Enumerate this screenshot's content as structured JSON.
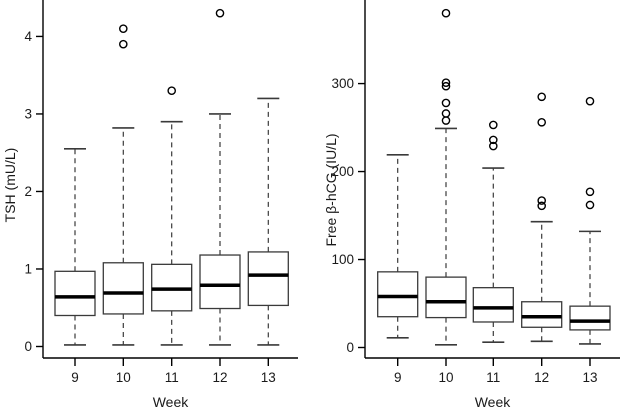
{
  "figure": {
    "background": "#ffffff",
    "axis_color": "#000000",
    "box_stroke_color": "#3a3a3a",
    "median_color": "#000000",
    "text_color": "#1a1a1a"
  },
  "chart_data": [
    {
      "type": "boxplot",
      "panel": "left",
      "title": "",
      "xlabel": "Week",
      "ylabel": "TSH (mU/L)",
      "categories": [
        "9",
        "10",
        "11",
        "12",
        "13"
      ],
      "yticks": [
        0,
        1,
        2,
        3,
        4
      ],
      "ylim": [
        0,
        4.47
      ],
      "grid": false,
      "legend": false,
      "series": [
        {
          "category": "9",
          "whisker_low": 0.02,
          "q1": 0.4,
          "median": 0.64,
          "q3": 0.97,
          "whisker_high": 2.55,
          "outliers": []
        },
        {
          "category": "10",
          "whisker_low": 0.02,
          "q1": 0.42,
          "median": 0.69,
          "q3": 1.08,
          "whisker_high": 2.82,
          "outliers": [
            3.9,
            4.1
          ]
        },
        {
          "category": "11",
          "whisker_low": 0.02,
          "q1": 0.46,
          "median": 0.74,
          "q3": 1.06,
          "whisker_high": 2.9,
          "outliers": [
            3.3
          ]
        },
        {
          "category": "12",
          "whisker_low": 0.02,
          "q1": 0.49,
          "median": 0.79,
          "q3": 1.18,
          "whisker_high": 3.0,
          "outliers": [
            4.3
          ]
        },
        {
          "category": "13",
          "whisker_low": 0.02,
          "q1": 0.53,
          "median": 0.92,
          "q3": 1.22,
          "whisker_high": 3.2,
          "outliers": []
        }
      ]
    },
    {
      "type": "boxplot",
      "panel": "right",
      "title": "",
      "xlabel": "Week",
      "ylabel": "Free β-hCG (IU/L)",
      "categories": [
        "9",
        "10",
        "11",
        "12",
        "13"
      ],
      "yticks": [
        0,
        100,
        200,
        300
      ],
      "ylim": [
        0,
        395
      ],
      "grid": false,
      "legend": false,
      "series": [
        {
          "category": "9",
          "whisker_low": 11,
          "q1": 35,
          "median": 58,
          "q3": 86,
          "whisker_high": 219,
          "outliers": []
        },
        {
          "category": "10",
          "whisker_low": 3,
          "q1": 34,
          "median": 52,
          "q3": 80,
          "whisker_high": 249,
          "outliers": [
            258,
            266,
            278,
            297,
            301,
            380
          ]
        },
        {
          "category": "11",
          "whisker_low": 6,
          "q1": 29,
          "median": 45,
          "q3": 68,
          "whisker_high": 204,
          "outliers": [
            229,
            236,
            253
          ]
        },
        {
          "category": "12",
          "whisker_low": 7,
          "q1": 23,
          "median": 35,
          "q3": 52,
          "whisker_high": 143,
          "outliers": [
            161,
            167,
            256,
            285
          ]
        },
        {
          "category": "13",
          "whisker_low": 4,
          "q1": 20,
          "median": 30,
          "q3": 47,
          "whisker_high": 132,
          "outliers": [
            162,
            177,
            280
          ]
        }
      ]
    }
  ]
}
